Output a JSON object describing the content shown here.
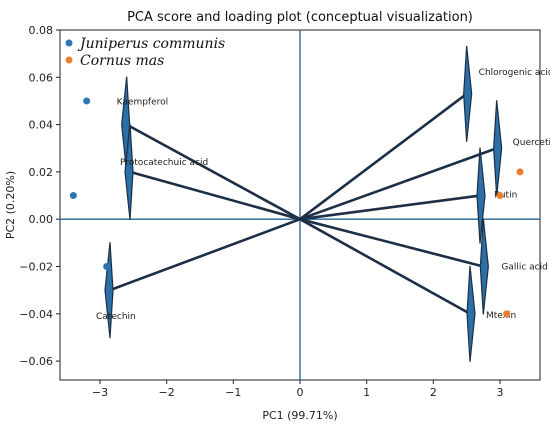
{
  "chart_data": {
    "type": "scatter",
    "title": "PCA score and loading plot (conceptual visualization)",
    "xlabel": "PC1 (99.71%)",
    "ylabel": "PC2 (0.20%)",
    "xlim": [
      -3.6,
      3.6
    ],
    "ylim": [
      -0.068,
      0.08
    ],
    "x_ticks": [
      -3,
      -2,
      -1,
      0,
      1,
      2,
      3
    ],
    "x_tick_labels": [
      "−3",
      "−2",
      "−1",
      "0",
      "1",
      "2",
      "3"
    ],
    "y_ticks": [
      -0.06,
      -0.04,
      -0.02,
      0.0,
      0.02,
      0.04,
      0.06,
      0.08
    ],
    "y_tick_labels": [
      "−0.06",
      "−0.04",
      "−0.02",
      "0.00",
      "0.02",
      "0.04",
      "0.06",
      "0.08"
    ],
    "legend_position": "top-left",
    "grid": false,
    "series": [
      {
        "name": "Juniperus communis",
        "color": "#2e75b6",
        "points": [
          {
            "x": -3.2,
            "y": 0.05
          },
          {
            "x": -3.4,
            "y": 0.01
          },
          {
            "x": -2.9,
            "y": -0.02
          }
        ]
      },
      {
        "name": "Cornus mas",
        "color": "#ed7d31",
        "points": [
          {
            "x": 3.3,
            "y": 0.02
          },
          {
            "x": 3.0,
            "y": 0.01
          },
          {
            "x": 3.1,
            "y": -0.04
          }
        ]
      }
    ],
    "loadings": [
      {
        "label": "Kaempferol",
        "x": -2.6,
        "y": 0.04
      },
      {
        "label": "Protocatechuic acid",
        "x": -2.55,
        "y": 0.02
      },
      {
        "label": "Catechin",
        "x": -2.85,
        "y": -0.03
      },
      {
        "label": "Chlorogenic acid",
        "x": 2.5,
        "y": 0.053
      },
      {
        "label": "Quercetin",
        "x": 2.95,
        "y": 0.03
      },
      {
        "label": "Rutin",
        "x": 2.7,
        "y": 0.01
      },
      {
        "label": "Gallic acid",
        "x": 2.75,
        "y": -0.02
      },
      {
        "label": "Mtexin",
        "x": 2.55,
        "y": -0.04
      }
    ],
    "colors": {
      "axis_line": "#1f5f94",
      "arrow_fill": "#2a6fa6",
      "arrow_outline": "#1d2f45"
    }
  }
}
